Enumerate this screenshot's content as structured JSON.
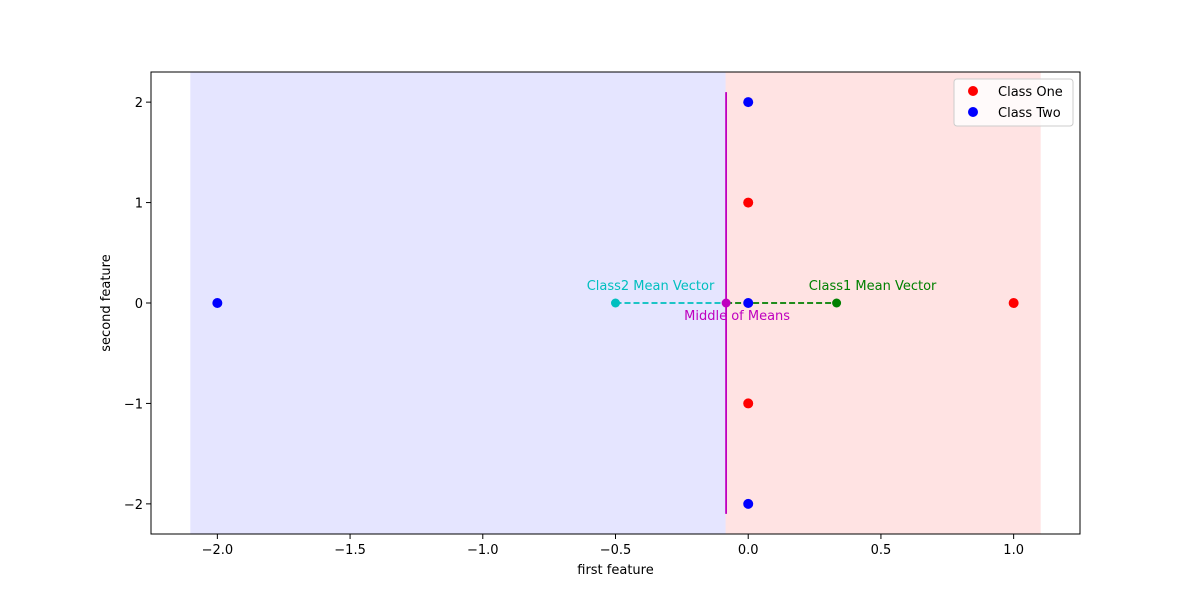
{
  "chart_data": {
    "type": "scatter",
    "title": "",
    "xlabel": "first feature",
    "ylabel": "second feature",
    "xlim": [
      -2.25,
      1.25
    ],
    "ylim": [
      -2.3,
      2.3
    ],
    "xticks": [
      -2.0,
      -1.5,
      -1.0,
      -0.5,
      0.0,
      0.5,
      1.0
    ],
    "xtick_labels": [
      "−2.0",
      "−1.5",
      "−1.0",
      "−0.5",
      "0.0",
      "0.5",
      "1.0"
    ],
    "yticks": [
      2,
      1,
      0,
      -1,
      -2
    ],
    "ytick_labels": [
      "2",
      "1",
      "0",
      "−1",
      "−2"
    ],
    "grid": false,
    "legend_position": "top-right",
    "regions": [
      {
        "x_from": -2.1,
        "x_to": -0.0833,
        "color": "#e5e5ff"
      },
      {
        "x_from": -0.0833,
        "x_to": 1.1,
        "color": "#ffe3e3"
      }
    ],
    "series": [
      {
        "name": "Class One",
        "color": "#ff0000",
        "points": [
          [
            0,
            1
          ],
          [
            0,
            -1
          ],
          [
            1,
            0
          ]
        ]
      },
      {
        "name": "Class Two",
        "color": "#0000ff",
        "points": [
          [
            0,
            2
          ],
          [
            0,
            0
          ],
          [
            0,
            -2
          ],
          [
            -2,
            0
          ]
        ]
      }
    ],
    "means": {
      "class2_mean": {
        "x": -0.5,
        "y": 0,
        "label": "Class2 Mean Vector",
        "color": "#00bfbf"
      },
      "class1_mean": {
        "x": 0.333,
        "y": 0,
        "label": "Class1 Mean Vector",
        "color": "#008000"
      },
      "middle": {
        "x": -0.0833,
        "y": 0,
        "label": "Middle of Means",
        "color": "#bf00bf"
      }
    },
    "decision_line": {
      "x": -0.0833,
      "y_from": -2.1,
      "y_to": 2.1,
      "color": "#bf00bf"
    }
  }
}
